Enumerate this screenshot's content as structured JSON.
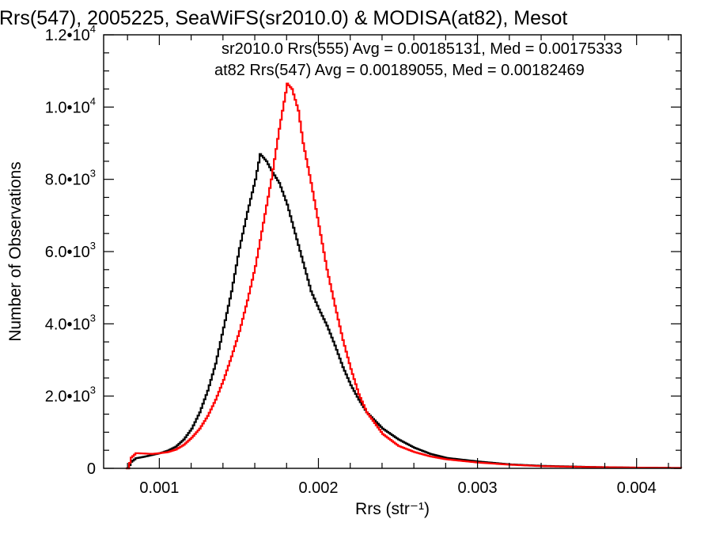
{
  "chart_data": {
    "type": "line",
    "title": "Rrs(547), 2005225, SeaWiFS(sr2010.0) & MODISA(at82), Mesot",
    "xlabel": "Rrs (str⁻¹)",
    "ylabel": "Number of Observations",
    "xlim": [
      0.00065,
      0.00428
    ],
    "ylim": [
      0,
      12000
    ],
    "x_ticks": [
      {
        "value": 0.001,
        "label": "0.001"
      },
      {
        "value": 0.002,
        "label": "0.002"
      },
      {
        "value": 0.003,
        "label": "0.003"
      },
      {
        "value": 0.004,
        "label": "0.004"
      }
    ],
    "y_ticks": [
      {
        "value": 0,
        "label": "0",
        "mant": "",
        "exp": ""
      },
      {
        "value": 2000,
        "label": "",
        "mant": "2.0•10",
        "exp": "3"
      },
      {
        "value": 4000,
        "label": "",
        "mant": "4.0•10",
        "exp": "3"
      },
      {
        "value": 6000,
        "label": "",
        "mant": "6.0•10",
        "exp": "3"
      },
      {
        "value": 8000,
        "label": "",
        "mant": "8.0•10",
        "exp": "3"
      },
      {
        "value": 10000,
        "label": "",
        "mant": "1.0•10",
        "exp": "4"
      },
      {
        "value": 12000,
        "label": "",
        "mant": "1.2•10",
        "exp": "4"
      }
    ],
    "grid": false,
    "step": true,
    "legend": [
      {
        "text": "sr2010.0 Rrs(555) Avg = 0.00185131, Med = 0.00175333",
        "color": "#000000"
      },
      {
        "text": "at82 Rrs(547) Avg = 0.00189055, Med = 0.00182469",
        "color": "#ff0000"
      }
    ],
    "series": [
      {
        "color": "#000000",
        "points": [
          [
            0.00079,
            0
          ],
          [
            0.0008,
            0
          ],
          [
            0.00082,
            180
          ],
          [
            0.00085,
            280
          ],
          [
            0.0009,
            320
          ],
          [
            0.00095,
            370
          ],
          [
            0.001,
            420
          ],
          [
            0.00105,
            490
          ],
          [
            0.0011,
            600
          ],
          [
            0.00115,
            800
          ],
          [
            0.0012,
            1100
          ],
          [
            0.00125,
            1550
          ],
          [
            0.0013,
            2150
          ],
          [
            0.00135,
            2900
          ],
          [
            0.0014,
            3900
          ],
          [
            0.00145,
            4900
          ],
          [
            0.0015,
            6100
          ],
          [
            0.00155,
            7100
          ],
          [
            0.0016,
            8000
          ],
          [
            0.00163,
            8700
          ],
          [
            0.00167,
            8500
          ],
          [
            0.0017,
            8250
          ],
          [
            0.00175,
            7900
          ],
          [
            0.0018,
            7300
          ],
          [
            0.00185,
            6500
          ],
          [
            0.0019,
            5700
          ],
          [
            0.00195,
            4900
          ],
          [
            0.002,
            4400
          ],
          [
            0.00205,
            3950
          ],
          [
            0.0021,
            3400
          ],
          [
            0.00215,
            2800
          ],
          [
            0.0022,
            2300
          ],
          [
            0.00225,
            1900
          ],
          [
            0.0023,
            1550
          ],
          [
            0.0024,
            1100
          ],
          [
            0.0025,
            800
          ],
          [
            0.0026,
            570
          ],
          [
            0.0027,
            400
          ],
          [
            0.0028,
            290
          ],
          [
            0.003,
            190
          ],
          [
            0.0032,
            110
          ],
          [
            0.0034,
            70
          ],
          [
            0.0037,
            40
          ],
          [
            0.004,
            20
          ],
          [
            0.00428,
            10
          ]
        ]
      },
      {
        "color": "#ff0000",
        "points": [
          [
            0.00079,
            0
          ],
          [
            0.0008,
            0
          ],
          [
            0.00082,
            300
          ],
          [
            0.00085,
            420
          ],
          [
            0.0009,
            410
          ],
          [
            0.00095,
            400
          ],
          [
            0.001,
            420
          ],
          [
            0.00105,
            450
          ],
          [
            0.0011,
            520
          ],
          [
            0.00115,
            650
          ],
          [
            0.0012,
            850
          ],
          [
            0.00125,
            1100
          ],
          [
            0.0013,
            1450
          ],
          [
            0.00135,
            1900
          ],
          [
            0.0014,
            2450
          ],
          [
            0.00145,
            3100
          ],
          [
            0.0015,
            3800
          ],
          [
            0.00155,
            4650
          ],
          [
            0.0016,
            5600
          ],
          [
            0.00165,
            6800
          ],
          [
            0.0017,
            8000
          ],
          [
            0.00175,
            9400
          ],
          [
            0.0018,
            10650
          ],
          [
            0.00183,
            10500
          ],
          [
            0.00187,
            9900
          ],
          [
            0.0019,
            9000
          ],
          [
            0.00195,
            7900
          ],
          [
            0.002,
            6700
          ],
          [
            0.00205,
            5500
          ],
          [
            0.0021,
            4500
          ],
          [
            0.00215,
            3550
          ],
          [
            0.0022,
            2750
          ],
          [
            0.00225,
            2050
          ],
          [
            0.0023,
            1550
          ],
          [
            0.0024,
            950
          ],
          [
            0.0025,
            620
          ],
          [
            0.0026,
            450
          ],
          [
            0.0027,
            330
          ],
          [
            0.0028,
            250
          ],
          [
            0.003,
            160
          ],
          [
            0.0032,
            100
          ],
          [
            0.0034,
            60
          ],
          [
            0.0037,
            35
          ],
          [
            0.004,
            20
          ],
          [
            0.00428,
            10
          ]
        ]
      }
    ]
  }
}
